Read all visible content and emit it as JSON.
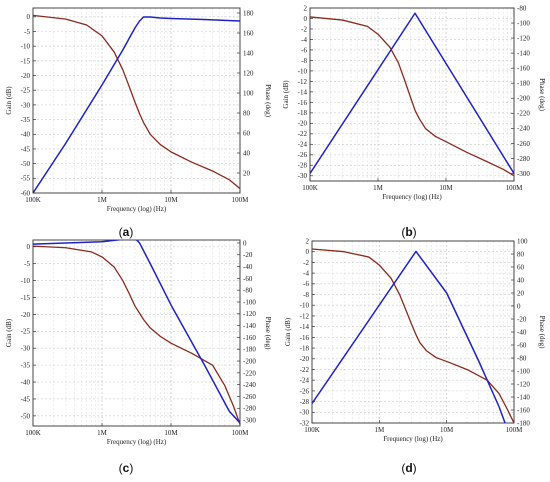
{
  "figure": {
    "panels": [
      {
        "id": "a",
        "label_open": "(",
        "label_letter": "a",
        "label_close": ")",
        "label_bold": true
      },
      {
        "id": "b",
        "label_open": "(",
        "label_letter": "b",
        "label_close": ")",
        "label_bold": true
      },
      {
        "id": "c",
        "label_open": "(",
        "label_letter": "c",
        "label_close": ")",
        "label_bold": true
      },
      {
        "id": "d",
        "label_open": "(",
        "label_letter": "d",
        "label_close": ")",
        "label_bold": true
      }
    ]
  },
  "chart_data": [
    {
      "panel": "a",
      "type": "line",
      "xlabel": "Frequency (log) (Hz)",
      "ylabel_left": "Gain (dB)",
      "ylabel_right": "Phase (deg)",
      "x_scale": "log",
      "xlim": [
        100000,
        100000000
      ],
      "x_ticks": [
        100000,
        1000000,
        10000000,
        100000000
      ],
      "x_tick_labels": [
        "100K",
        "1M",
        "10M",
        "100M"
      ],
      "ylim_left": [
        -60,
        3
      ],
      "y_ticks_left": [
        0,
        -5,
        -10,
        -15,
        -20,
        -25,
        -30,
        -35,
        -40,
        -45,
        -50,
        -55,
        -60
      ],
      "y_tick_labels_left": [
        "0",
        "-5",
        "-10",
        "-15",
        "-20",
        "-25",
        "-30",
        "-35",
        "-40",
        "-45",
        "-50",
        "-55",
        "-60"
      ],
      "ylim_right": [
        0,
        185
      ],
      "y_ticks_right": [
        20,
        40,
        60,
        80,
        100,
        120,
        140,
        160,
        180
      ],
      "y_tick_labels_right": [
        "20",
        "40",
        "60",
        "80",
        "100",
        "120",
        "140",
        "160",
        "180"
      ],
      "grid": true,
      "series": [
        {
          "axis": "left",
          "color": "#8b2a1e",
          "x": [
            100000,
            300000,
            600000,
            1000000,
            1500000,
            2000000,
            2500000,
            3000000,
            3500000,
            4000000,
            5000000,
            7000000,
            10000000,
            20000000,
            40000000,
            70000000,
            100000000
          ],
          "y": [
            0.5,
            -0.8,
            -2.8,
            -6.5,
            -12,
            -18,
            -24,
            -29,
            -33,
            -36,
            -40,
            -43.5,
            -46,
            -49.5,
            -52.5,
            -55.5,
            -58.5
          ]
        },
        {
          "axis": "right",
          "color": "#1f22c9",
          "x": [
            100000,
            300000,
            1000000,
            2000000,
            3000000,
            3500000,
            4000000,
            5000000,
            7000000,
            10000000,
            30000000,
            100000000
          ],
          "y": [
            0,
            50,
            108,
            143,
            165,
            172,
            176,
            176,
            175,
            174.5,
            173.5,
            172
          ]
        }
      ]
    },
    {
      "panel": "b",
      "type": "line",
      "xlabel": "Frequency (log) (Hz)",
      "ylabel_left": "Gain (dB)",
      "ylabel_right": "Phase (deg)",
      "x_scale": "log",
      "xlim": [
        100000,
        100000000
      ],
      "x_ticks": [
        100000,
        1000000,
        10000000,
        100000000
      ],
      "x_tick_labels": [
        "100K",
        "1M",
        "10M",
        "100M"
      ],
      "ylim_left": [
        -31,
        2
      ],
      "y_ticks_left": [
        2,
        0,
        -2,
        -4,
        -6,
        -8,
        -10,
        -12,
        -14,
        -16,
        -18,
        -20,
        -22,
        -24,
        -26,
        -28,
        -30
      ],
      "y_tick_labels_left": [
        "2",
        "0",
        "-2",
        "-4",
        "-6",
        "-8",
        "-10",
        "-12",
        "-14",
        "-16",
        "-18",
        "-20",
        "-22",
        "-24",
        "-26",
        "-28",
        "-30"
      ],
      "ylim_right": [
        -310,
        -80
      ],
      "y_ticks_right": [
        -80,
        -100,
        -120,
        -140,
        -160,
        -180,
        -200,
        -220,
        -240,
        -260,
        -280,
        -300
      ],
      "y_tick_labels_right": [
        "-80",
        "-100",
        "-120",
        "-140",
        "-160",
        "-180",
        "-200",
        "-220",
        "-240",
        "-260",
        "-280",
        "-300"
      ],
      "grid": true,
      "series": [
        {
          "axis": "left",
          "color": "#8b2a1e",
          "x": [
            100000,
            300000,
            700000,
            1000000,
            1500000,
            2000000,
            2500000,
            3000000,
            3500000,
            4000000,
            5000000,
            7000000,
            10000000,
            20000000,
            40000000,
            70000000,
            100000000
          ],
          "y": [
            0.3,
            -0.3,
            -1.5,
            -3,
            -5.5,
            -8.5,
            -12,
            -15,
            -17.5,
            -19,
            -21,
            -22.5,
            -23.5,
            -25.5,
            -27.3,
            -28.8,
            -30
          ]
        },
        {
          "axis": "right",
          "color": "#1f22c9",
          "x": [
            100000,
            3500000,
            100000000
          ],
          "y": [
            -300,
            -87,
            -300
          ]
        }
      ]
    },
    {
      "panel": "c",
      "type": "line",
      "xlabel": "Frequency (log) (Hz)",
      "ylabel_left": "Gain (dB)",
      "ylabel_right": "Phase (deg)",
      "x_scale": "log",
      "xlim": [
        100000,
        100000000
      ],
      "x_ticks": [
        100000,
        1000000,
        10000000,
        100000000
      ],
      "x_tick_labels": [
        "100K",
        "1M",
        "10M",
        "100M"
      ],
      "ylim_left": [
        -53,
        2
      ],
      "y_ticks_left": [
        0,
        -5,
        -10,
        -15,
        -20,
        -25,
        -30,
        -35,
        -40,
        -45,
        -50
      ],
      "y_tick_labels_left": [
        "0",
        "-5",
        "-10",
        "-15",
        "-20",
        "-25",
        "-30",
        "-35",
        "-40",
        "-45",
        "-50"
      ],
      "ylim_right": [
        -310,
        5
      ],
      "y_ticks_right": [
        0,
        -20,
        -40,
        -60,
        -80,
        -100,
        -120,
        -140,
        -160,
        -180,
        -200,
        -220,
        -240,
        -260,
        -280,
        -300
      ],
      "y_tick_labels_right": [
        "0",
        "-20",
        "-40",
        "-60",
        "-80",
        "-100",
        "-120",
        "-140",
        "-160",
        "-180",
        "-200",
        "-220",
        "-240",
        "-260",
        "-280",
        "-300"
      ],
      "grid": true,
      "series": [
        {
          "axis": "left",
          "color": "#8b2a1e",
          "x": [
            100000,
            300000,
            700000,
            1000000,
            1500000,
            2000000,
            2500000,
            3000000,
            4000000,
            5000000,
            7000000,
            10000000,
            20000000,
            40000000,
            60000000,
            80000000,
            100000000
          ],
          "y": [
            0.2,
            -0.3,
            -1.5,
            -3,
            -6,
            -10,
            -14,
            -17.5,
            -21.5,
            -24,
            -26.5,
            -28.5,
            -31.5,
            -35,
            -41,
            -47,
            -52.5
          ]
        },
        {
          "axis": "right",
          "color": "#1f22c9",
          "x": [
            100000,
            1000000,
            2000000,
            3000000,
            3500000,
            5000000,
            10000000,
            30000000,
            70000000,
            100000000
          ],
          "y": [
            -2,
            2,
            6,
            8,
            0,
            -35,
            -105,
            -205,
            -285,
            -305
          ]
        }
      ]
    },
    {
      "panel": "d",
      "type": "line",
      "xlabel": "Frequency (log) (Hz)",
      "ylabel_left": "Gain (dB)",
      "ylabel_right": "Phase (deg)",
      "x_scale": "log",
      "xlim": [
        100000,
        100000000
      ],
      "x_ticks": [
        100000,
        1000000,
        10000000,
        100000000
      ],
      "x_tick_labels": [
        "100K",
        "1M",
        "10M",
        "100M"
      ],
      "ylim_left": [
        -32,
        2
      ],
      "y_ticks_left": [
        2,
        0,
        -2,
        -4,
        -6,
        -8,
        -10,
        -12,
        -14,
        -16,
        -18,
        -20,
        -22,
        -24,
        -26,
        -28,
        -30,
        -32
      ],
      "y_tick_labels_left": [
        "2",
        "0",
        "-2",
        "-4",
        "-6",
        "-8",
        "-10",
        "-12",
        "-14",
        "-16",
        "-18",
        "-20",
        "-22",
        "-24",
        "-26",
        "-28",
        "-30",
        "-32"
      ],
      "ylim_right": [
        -180,
        100
      ],
      "y_ticks_right": [
        100,
        80,
        60,
        40,
        20,
        0,
        -20,
        -40,
        -60,
        -80,
        -100,
        -120,
        -140,
        -160,
        -180
      ],
      "y_tick_labels_right": [
        "100",
        "80",
        "60",
        "40",
        "20",
        "0",
        "-20",
        "-40",
        "-60",
        "-80",
        "-100",
        "-120",
        "-140",
        "-160",
        "-180"
      ],
      "grid": true,
      "series": [
        {
          "axis": "left",
          "color": "#8b2a1e",
          "x": [
            100000,
            300000,
            700000,
            1000000,
            1500000,
            2000000,
            2500000,
            3000000,
            3500000,
            4000000,
            5000000,
            7000000,
            10000000,
            20000000,
            40000000,
            60000000,
            80000000,
            100000000
          ],
          "y": [
            0.5,
            0,
            -1,
            -2.5,
            -5,
            -8,
            -11,
            -13.5,
            -15.5,
            -17,
            -18.5,
            -19.8,
            -20.5,
            -22,
            -24,
            -26.5,
            -29.5,
            -32
          ]
        },
        {
          "axis": "right",
          "color": "#1f22c9",
          "x": [
            100000,
            3500000,
            10000000,
            30000000,
            60000000,
            80000000,
            100000000
          ],
          "y": [
            -150,
            84,
            20,
            -85,
            -155,
            -190,
            -220
          ]
        }
      ]
    }
  ]
}
